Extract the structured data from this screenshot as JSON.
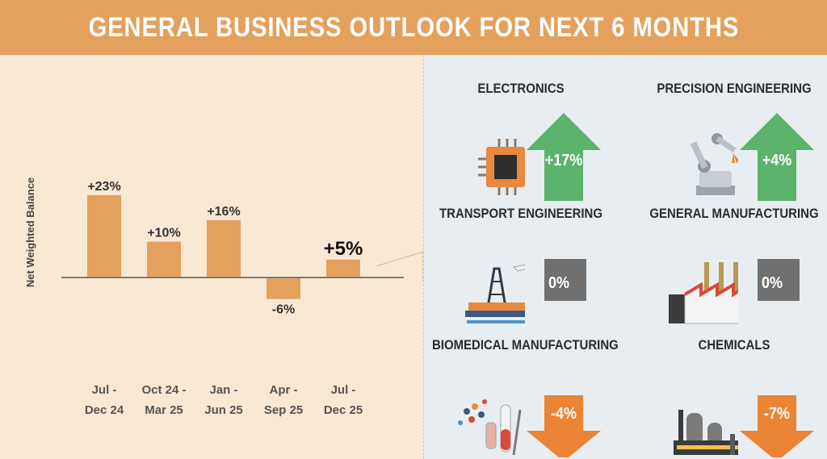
{
  "header": {
    "title": "GENERAL BUSINESS OUTLOOK FOR NEXT 6 MONTHS"
  },
  "chart_data": {
    "type": "bar",
    "ylabel": "Net Weighted Balance",
    "categories": [
      [
        "Jul -",
        "Dec 24"
      ],
      [
        "Oct 24 -",
        "Mar 25"
      ],
      [
        "Jan -",
        "Jun 25"
      ],
      [
        "Apr -",
        "Sep 25"
      ],
      [
        "Jul -",
        "Dec 25"
      ]
    ],
    "values": [
      23,
      10,
      16,
      -6,
      5
    ],
    "labels": [
      "+23%",
      "+10%",
      "+16%",
      "-6%",
      "+5%"
    ],
    "highlight_index": 4,
    "bar_color": "#e3a15d",
    "grid": false
  },
  "industries": [
    {
      "name": "ELECTRONICS",
      "value": "+17%",
      "direction": "up",
      "color": "#5cb36c",
      "icon": "chip-icon"
    },
    {
      "name": "PRECISION ENGINEERING",
      "value": "+4%",
      "direction": "up",
      "color": "#5cb36c",
      "icon": "robot-arm-icon"
    },
    {
      "name": "TRANSPORT ENGINEERING",
      "value": "0%",
      "direction": "flat",
      "color": "#707070",
      "icon": "oil-rig-airplane-icon"
    },
    {
      "name": "GENERAL MANUFACTURING",
      "value": "0%",
      "direction": "flat",
      "color": "#707070",
      "icon": "factory-icon"
    },
    {
      "name": "BIOMEDICAL MANUFACTURING",
      "value": "-4%",
      "direction": "down",
      "color": "#ec8436",
      "icon": "lab-equipment-icon"
    },
    {
      "name": "CHEMICALS",
      "value": "-7%",
      "direction": "down",
      "color": "#ec8436",
      "icon": "chemical-plant-icon"
    }
  ]
}
